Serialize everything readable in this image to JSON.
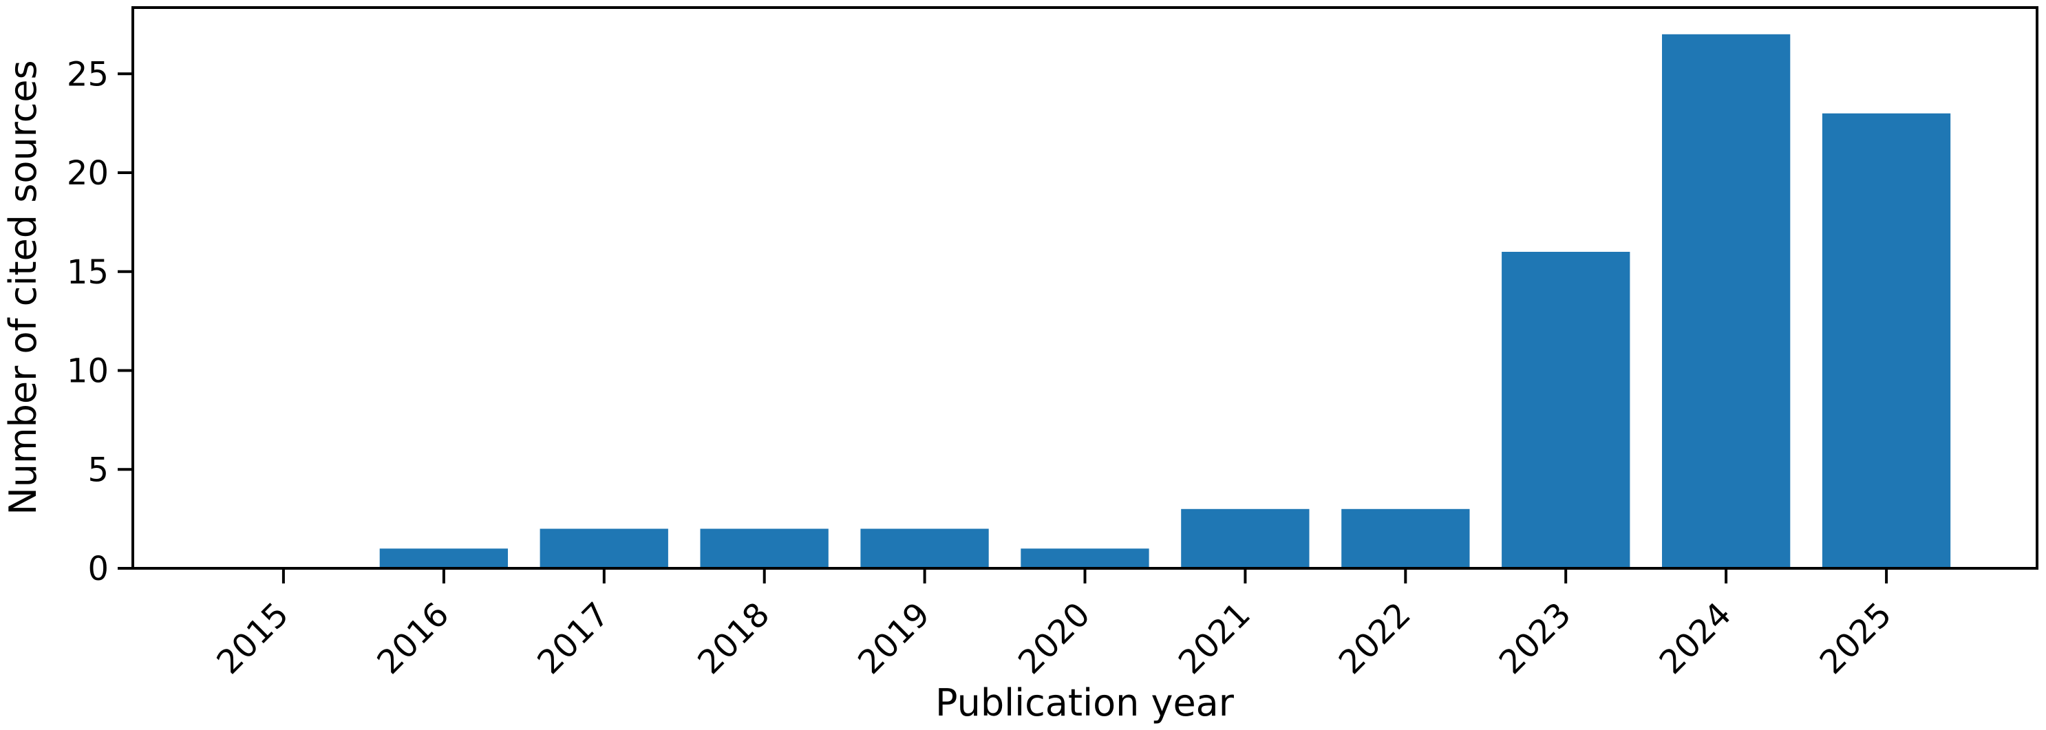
{
  "chart_data": {
    "type": "bar",
    "title": "",
    "categories": [
      "2015",
      "2016",
      "2017",
      "2018",
      "2019",
      "2020",
      "2021",
      "2022",
      "2023",
      "2024",
      "2025"
    ],
    "values": [
      0,
      1,
      2,
      2,
      2,
      1,
      3,
      3,
      16,
      27,
      23
    ],
    "xlabel": "Publication year",
    "ylabel": "Number of cited sources",
    "yticks": [
      0,
      5,
      10,
      15,
      20,
      25
    ],
    "ylim": [
      0,
      28.35
    ],
    "xtick_rotation_deg": 45,
    "bar_color": "#1f77b4",
    "axis_color": "#000000",
    "background_color": "#ffffff",
    "grid": false,
    "legend": "none"
  }
}
